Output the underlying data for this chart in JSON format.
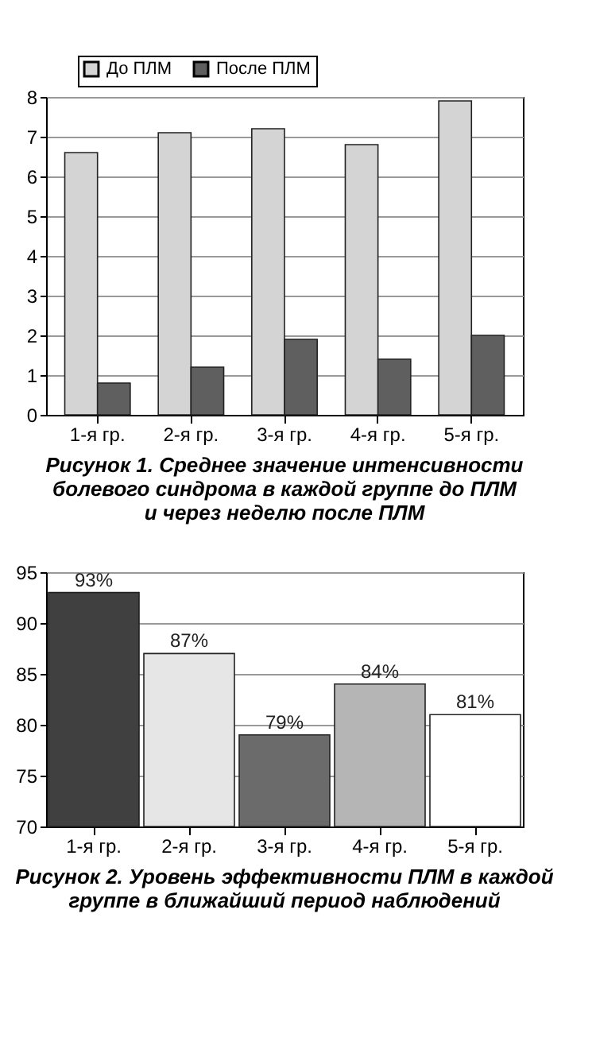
{
  "chart_data": [
    {
      "type": "bar",
      "title": "Рисунок 1. Среднее значение интенсивности\nболевого синдрома в каждой группе до ПЛМ\nи через неделю после ПЛМ",
      "categories": [
        "1-я гр.",
        "2-я гр.",
        "3-я гр.",
        "4-я гр.",
        "5-я гр."
      ],
      "series": [
        {
          "name": "До ПЛМ",
          "color": "#d4d4d4",
          "values": [
            6.6,
            7.1,
            7.2,
            6.8,
            7.9
          ]
        },
        {
          "name": "После ПЛМ",
          "color": "#5f5f5f",
          "values": [
            0.8,
            1.2,
            1.9,
            1.4,
            2.0
          ]
        }
      ],
      "ylim": [
        0,
        8
      ],
      "yticks": [
        0,
        1,
        2,
        3,
        4,
        5,
        6,
        7,
        8
      ],
      "grid": "y",
      "legend": "top left"
    },
    {
      "type": "bar",
      "title": "Рисунок 2. Уровень эффективности ПЛМ в каждой\nгруппе в ближайший период наблюдений",
      "categories": [
        "1-я гр.",
        "2-я гр.",
        "3-я гр.",
        "4-я гр.",
        "5-я гр."
      ],
      "values": [
        93,
        87,
        79,
        84,
        81
      ],
      "colors": [
        "#404040",
        "#e6e6e6",
        "#6b6b6b",
        "#b5b5b5",
        "#ffffff"
      ],
      "value_labels": [
        "93%",
        "87%",
        "79%",
        "84%",
        "81%"
      ],
      "ylim": [
        70,
        95
      ],
      "yticks": [
        70,
        75,
        80,
        85,
        90,
        95
      ],
      "grid": "y"
    }
  ]
}
